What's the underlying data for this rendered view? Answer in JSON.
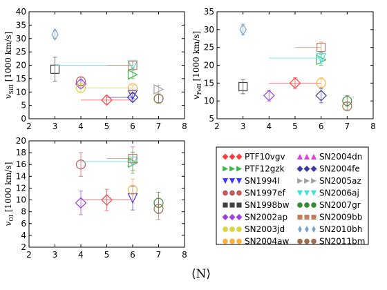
{
  "figure": {
    "xlabel": "⟨N⟩"
  },
  "colors": {
    "PTF10vgv": "#ff4040",
    "PTF12gzk": "#3cb84a",
    "SN1994I": "#3a3aff",
    "SN1997ef": "#c05a5a",
    "SN1998bw": "#404040",
    "SN2002ap": "#9b40d8",
    "SN2003jd": "#d6d640",
    "SN2004aw": "#ffb03a",
    "SN2004dn": "#e040e0",
    "SN2004fe": "#3a3aa0",
    "SN2005az": "#a0a0a8",
    "SN2006aj": "#40e0e0",
    "SN2007gr": "#3a8a3a",
    "SN2009bb": "#c08060",
    "SN2010bh": "#7aa0d0",
    "SN2011bm": "#a07050"
  },
  "legend": {
    "placement": "lower-right",
    "entries": [
      {
        "name": "PTF10vgv",
        "marker": "diamond"
      },
      {
        "name": "SN2004dn",
        "marker": "triangle-up"
      },
      {
        "name": "PTF12gzk",
        "marker": "triangle-right"
      },
      {
        "name": "SN2004fe",
        "marker": "diamond"
      },
      {
        "name": "SN1994I",
        "marker": "triangle-down"
      },
      {
        "name": "SN2005az",
        "marker": "triangle-right"
      },
      {
        "name": "SN1997ef",
        "marker": "circle"
      },
      {
        "name": "SN2006aj",
        "marker": "triangle-down"
      },
      {
        "name": "SN1998bw",
        "marker": "square"
      },
      {
        "name": "SN2007gr",
        "marker": "circle"
      },
      {
        "name": "SN2002ap",
        "marker": "diamond"
      },
      {
        "name": "SN2009bb",
        "marker": "square"
      },
      {
        "name": "SN2003jd",
        "marker": "circle"
      },
      {
        "name": "SN2010bh",
        "marker": "thin-diamond"
      },
      {
        "name": "SN2004aw",
        "marker": "circle"
      },
      {
        "name": "SN2011bm",
        "marker": "circle"
      }
    ]
  },
  "chart_data": [
    {
      "type": "scatter",
      "panel": "top-left",
      "ylabel": "v_SiII [1000 km/s]",
      "ylabel_html": "v",
      "ylabel_sub": "SiII",
      "ylabel_rest": " [1000 km/s]",
      "xlim": [
        2,
        8
      ],
      "ylim": [
        0,
        40
      ],
      "xticks": [
        2,
        3,
        4,
        5,
        6,
        7,
        8
      ],
      "yticks": [
        0,
        5,
        10,
        15,
        20,
        25,
        30,
        35,
        40
      ],
      "grid": false,
      "points": [
        {
          "name": "PTF10vgv",
          "marker": "diamond",
          "x": 5,
          "y": 7,
          "xerr": [
            4,
            6
          ],
          "yerr": [
            5.5,
            8.5
          ]
        },
        {
          "name": "PTF12gzk",
          "marker": "triangle-right",
          "x": 6,
          "y": 16.5,
          "xerr": null,
          "yerr": [
            15,
            18
          ]
        },
        {
          "name": "SN1994I",
          "marker": "triangle-down",
          "x": 6,
          "y": 9,
          "xerr": null,
          "yerr": [
            7.5,
            10.5
          ]
        },
        {
          "name": "SN1997ef",
          "marker": "circle",
          "x": 4,
          "y": 14,
          "xerr": null,
          "yerr": [
            12.5,
            15.5
          ]
        },
        {
          "name": "SN1998bw",
          "marker": "square",
          "x": 3,
          "y": 18.5,
          "xerr": null,
          "yerr": [
            14,
            23
          ]
        },
        {
          "name": "SN2002ap",
          "marker": "diamond",
          "x": 4,
          "y": 13,
          "xerr": null,
          "yerr": [
            11.5,
            14.5
          ]
        },
        {
          "name": "SN2003jd",
          "marker": "circle",
          "x": 4,
          "y": 11.5,
          "xerr": [
            4,
            6
          ],
          "yerr": [
            10,
            13
          ]
        },
        {
          "name": "SN2004aw",
          "marker": "circle",
          "x": 6,
          "y": 11.5,
          "xerr": null,
          "yerr": [
            10.5,
            12.5
          ]
        },
        {
          "name": "SN2004fe",
          "marker": "diamond",
          "x": 6,
          "y": 8,
          "xerr": [
            5,
            6
          ],
          "yerr": [
            6.5,
            9.5
          ]
        },
        {
          "name": "SN2005az",
          "marker": "triangle-right",
          "x": 7,
          "y": 11,
          "xerr": null,
          "yerr": [
            9.5,
            12.5
          ]
        },
        {
          "name": "SN2006aj",
          "marker": "triangle-down",
          "x": 6,
          "y": 20,
          "xerr": [
            3,
            6
          ],
          "yerr": [
            18.5,
            21.5
          ]
        },
        {
          "name": "SN2007gr",
          "marker": "circle",
          "x": 7,
          "y": 7.5,
          "xerr": null,
          "yerr": [
            6,
            9
          ]
        },
        {
          "name": "SN2009bb",
          "marker": "square",
          "x": 6,
          "y": 20,
          "xerr": [
            5,
            6
          ],
          "yerr": [
            18.5,
            21.5
          ]
        },
        {
          "name": "SN2010bh",
          "marker": "thin-diamond",
          "x": 3,
          "y": 31.5,
          "xerr": null,
          "yerr": [
            30,
            33
          ]
        },
        {
          "name": "SN2011bm",
          "marker": "circle",
          "x": 7,
          "y": 7.5,
          "xerr": null,
          "yerr": [
            6,
            9
          ]
        }
      ]
    },
    {
      "type": "scatter",
      "panel": "top-right",
      "ylabel": "v_FeII [1000 km/s]",
      "ylabel_html": "v",
      "ylabel_sub": "FeII",
      "ylabel_rest": " [1000 km/s]",
      "xlim": [
        2,
        8
      ],
      "ylim": [
        5,
        35
      ],
      "xticks": [
        2,
        3,
        4,
        5,
        6,
        7,
        8
      ],
      "yticks": [
        5,
        10,
        15,
        20,
        25,
        30,
        35
      ],
      "grid": false,
      "points": [
        {
          "name": "PTF10vgv",
          "marker": "diamond",
          "x": 5,
          "y": 15,
          "xerr": [
            4,
            6
          ],
          "yerr": [
            13.5,
            16.5
          ]
        },
        {
          "name": "PTF12gzk",
          "marker": "triangle-right",
          "x": 6,
          "y": 21.5,
          "xerr": null,
          "yerr": [
            20,
            23
          ]
        },
        {
          "name": "SN1998bw",
          "marker": "square",
          "x": 3,
          "y": 14,
          "xerr": null,
          "yerr": [
            12,
            16
          ]
        },
        {
          "name": "SN2002ap",
          "marker": "diamond",
          "x": 4,
          "y": 11.5,
          "xerr": null,
          "yerr": [
            10,
            13
          ]
        },
        {
          "name": "SN2004aw",
          "marker": "circle",
          "x": 6,
          "y": 15,
          "xerr": null,
          "yerr": [
            13.5,
            16.5
          ]
        },
        {
          "name": "SN2004fe",
          "marker": "diamond",
          "x": 6,
          "y": 11.5,
          "xerr": null,
          "yerr": [
            9.5,
            13.5
          ]
        },
        {
          "name": "SN2006aj",
          "marker": "triangle-down",
          "x": 6,
          "y": 22,
          "xerr": [
            4,
            6
          ],
          "yerr": [
            20.5,
            23.5
          ]
        },
        {
          "name": "SN2007gr",
          "marker": "circle",
          "x": 7,
          "y": 10,
          "xerr": null,
          "yerr": [
            8.5,
            11.5
          ]
        },
        {
          "name": "SN2009bb",
          "marker": "square",
          "x": 6,
          "y": 25,
          "xerr": [
            5,
            6
          ],
          "yerr": [
            23.5,
            26.5
          ]
        },
        {
          "name": "SN2010bh",
          "marker": "thin-diamond",
          "x": 3,
          "y": 30,
          "xerr": null,
          "yerr": [
            28.5,
            31.5
          ]
        },
        {
          "name": "SN2011bm",
          "marker": "circle",
          "x": 7,
          "y": 8.5,
          "xerr": null,
          "yerr": [
            7.5,
            9.5
          ]
        }
      ]
    },
    {
      "type": "scatter",
      "panel": "bottom-left",
      "ylabel": "v_OI [1000 km/s]",
      "ylabel_html": "v",
      "ylabel_sub": "OI",
      "ylabel_rest": " [1000 km/s]",
      "xlim": [
        2,
        8
      ],
      "ylim": [
        2,
        20
      ],
      "xticks": [
        2,
        3,
        4,
        5,
        6,
        7,
        8
      ],
      "yticks": [
        2,
        4,
        6,
        8,
        10,
        12,
        14,
        16,
        18,
        20
      ],
      "grid": false,
      "points": [
        {
          "name": "PTF10vgv",
          "marker": "diamond",
          "x": 5,
          "y": 10,
          "xerr": [
            4,
            6
          ],
          "yerr": [
            8.2,
            11.8
          ]
        },
        {
          "name": "PTF12gzk",
          "marker": "triangle-right",
          "x": 6,
          "y": 16.3,
          "xerr": null,
          "yerr": [
            14.5,
            18.1
          ]
        },
        {
          "name": "SN1994I",
          "marker": "triangle-down",
          "x": 6,
          "y": 10.3,
          "xerr": null,
          "yerr": [
            8.3,
            12.3
          ]
        },
        {
          "name": "SN1997ef",
          "marker": "circle",
          "x": 4,
          "y": 16,
          "xerr": null,
          "yerr": [
            14,
            18
          ]
        },
        {
          "name": "SN2002ap",
          "marker": "diamond",
          "x": 4,
          "y": 9.5,
          "xerr": null,
          "yerr": [
            7.5,
            11.5
          ]
        },
        {
          "name": "SN2004aw",
          "marker": "circle",
          "x": 6,
          "y": 11.7,
          "xerr": null,
          "yerr": [
            9.9,
            13.5
          ]
        },
        {
          "name": "SN2006aj",
          "marker": "triangle-down",
          "x": 6,
          "y": 16.5,
          "xerr": [
            4,
            6
          ],
          "yerr": [
            15,
            18
          ]
        },
        {
          "name": "SN2007gr",
          "marker": "circle",
          "x": 7,
          "y": 9.5,
          "xerr": null,
          "yerr": [
            7.7,
            11.3
          ]
        },
        {
          "name": "SN2009bb",
          "marker": "square",
          "x": 6,
          "y": 17,
          "xerr": [
            5,
            6
          ],
          "yerr": [
            15,
            19
          ]
        },
        {
          "name": "SN2011bm",
          "marker": "circle",
          "x": 7,
          "y": 8.5,
          "xerr": null,
          "yerr": [
            6.7,
            10.3
          ]
        }
      ]
    }
  ]
}
